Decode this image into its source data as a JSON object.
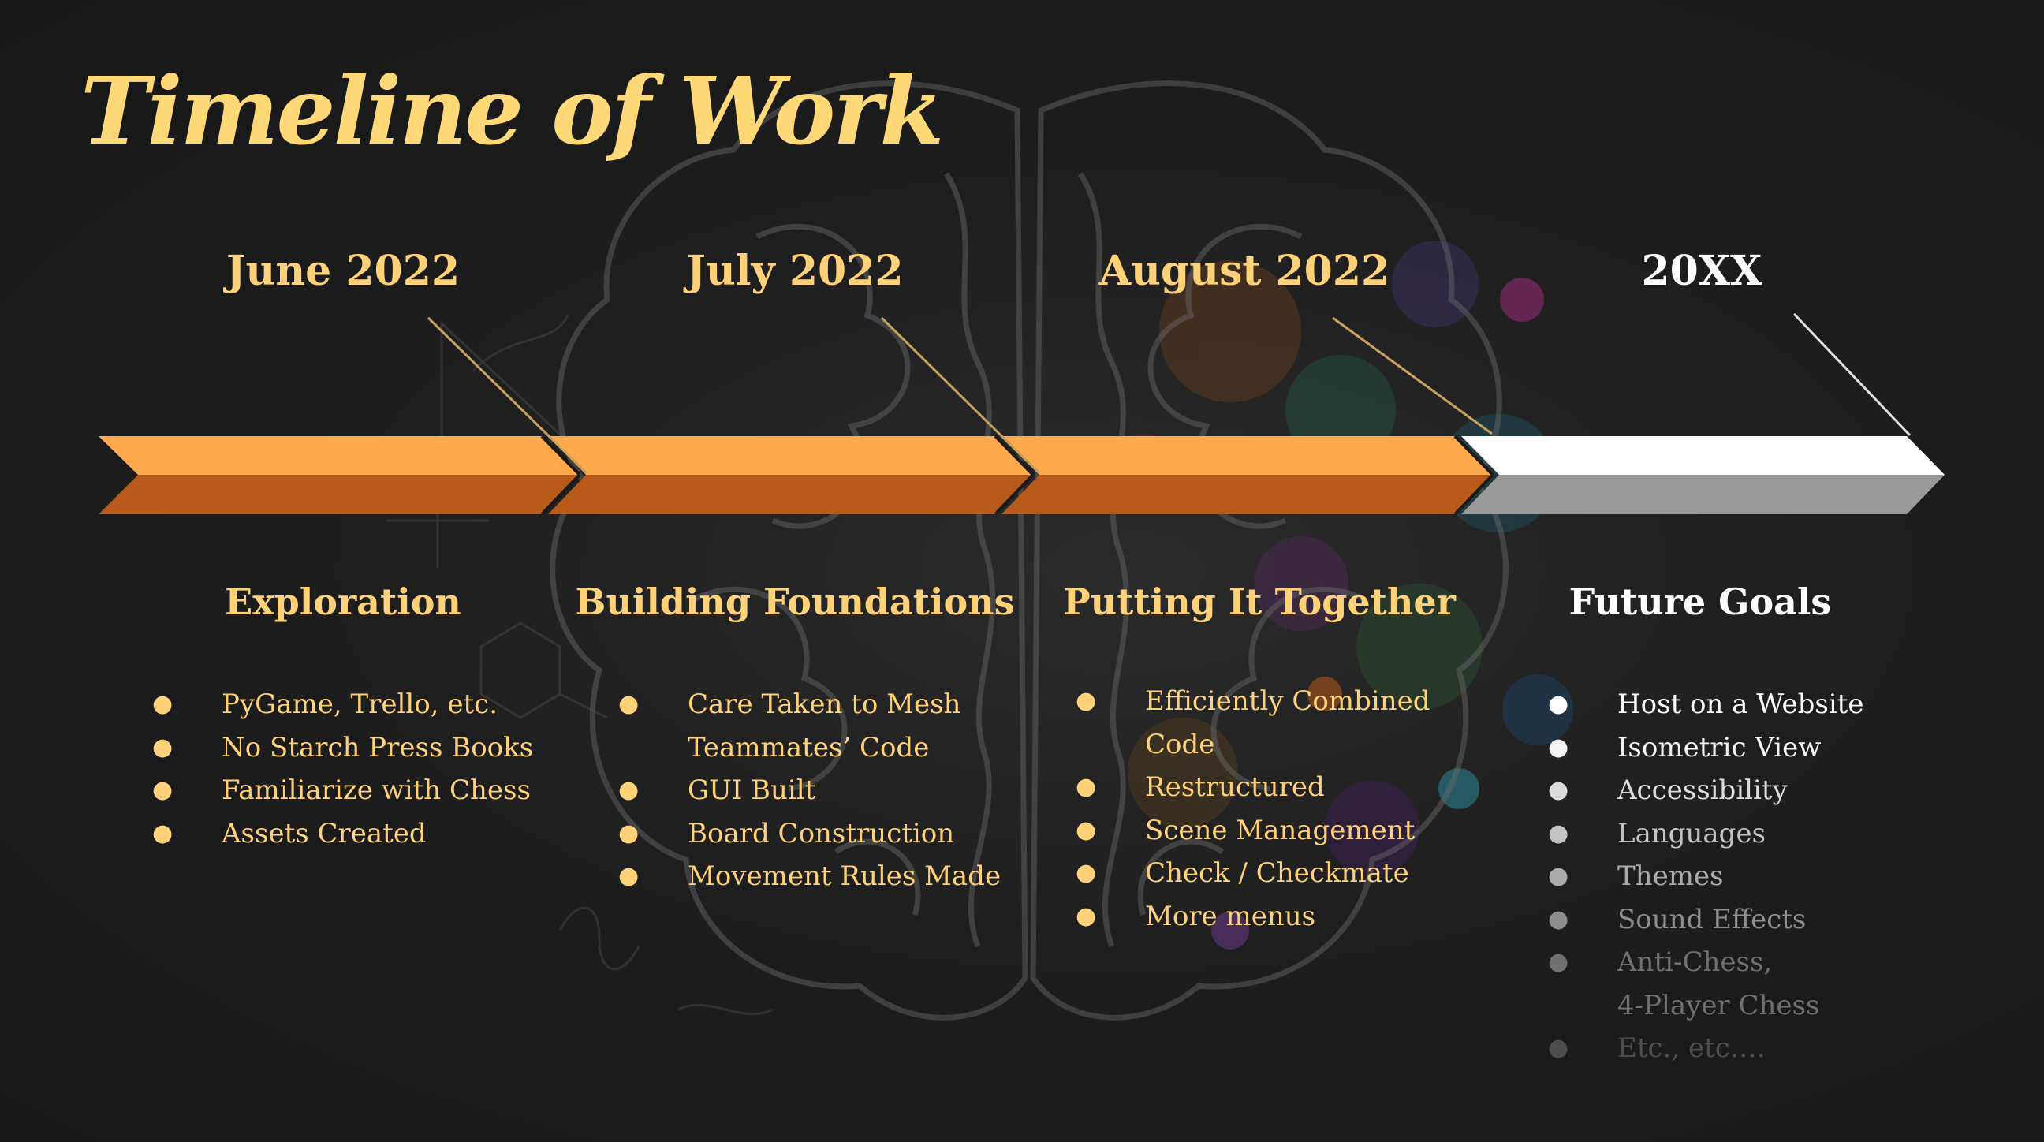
{
  "title": "Timeline of Work",
  "colors": {
    "accent_text": "#ffd27a",
    "arrow_top": "#ffa94d",
    "arrow_bottom": "#b85a1a",
    "future_top": "#ffffff",
    "future_bottom": "#9a9a9a"
  },
  "columns": [
    {
      "date": "June 2022",
      "heading": "Exploration",
      "items": [
        {
          "text": "PyGame, Trello, etc."
        },
        {
          "text": "No Starch Press Books"
        },
        {
          "text": "Familiarize with Chess"
        },
        {
          "text": "Assets Created"
        }
      ]
    },
    {
      "date": "July 2022",
      "heading": "Building Foundations",
      "items": [
        {
          "text": "Care Taken to Mesh",
          "cont": "Teammates’ Code"
        },
        {
          "text": "GUI Built"
        },
        {
          "text": "Board Construction"
        },
        {
          "text": "Movement Rules Made"
        }
      ]
    },
    {
      "date": "August 2022",
      "heading": "Putting It Together",
      "items": [
        {
          "text": "Efficiently Combined",
          "cont": "Code"
        },
        {
          "text": "Restructured"
        },
        {
          "text": "Scene Management"
        },
        {
          "text": "Check / Checkmate"
        },
        {
          "text": "More menus"
        }
      ]
    },
    {
      "date": "20XX",
      "heading": "Future Goals",
      "items": [
        {
          "text": "Host on a Website"
        },
        {
          "text": "Isometric View"
        },
        {
          "text": "Accessibility"
        },
        {
          "text": "Languages"
        },
        {
          "text": "Themes"
        },
        {
          "text": "Sound Effects"
        },
        {
          "text": "Anti-Chess,",
          "cont": "4-Player Chess"
        },
        {
          "text": "Etc., etc…."
        }
      ]
    }
  ]
}
